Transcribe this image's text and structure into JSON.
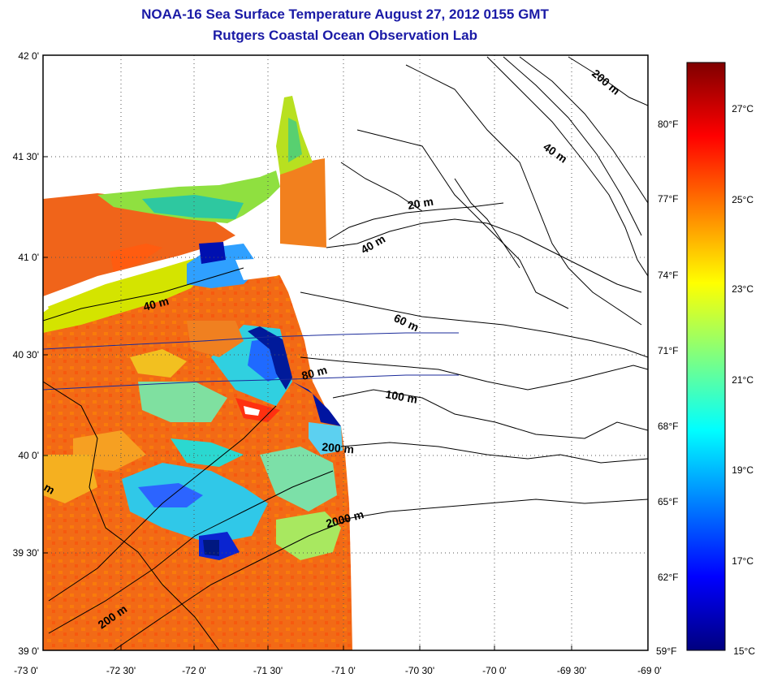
{
  "title": "NOAA-16 Sea Surface Temperature August 27, 2012 0155 GMT",
  "subtitle": "Rutgers Coastal Ocean Observation Lab",
  "map": {
    "lat_labels": [
      "42 0'",
      "41 30'",
      "41 0'",
      "40 30'",
      "40 0'",
      "39 30'",
      "39 0'"
    ],
    "lon_labels": [
      "-73 0'",
      "-72 30'",
      "-72 0'",
      "-71 30'",
      "-71 0'",
      "-70 30'",
      "-70 0'",
      "-69 30'",
      "-69 0'"
    ],
    "lat_range": [
      39,
      42
    ],
    "lon_range": [
      -73,
      -69
    ],
    "grid": "dotted",
    "contour_labels": [
      "200 m",
      "40 m",
      "20 m",
      "40 m",
      "40 m",
      "60 m",
      "80 m",
      "100 m",
      "200 m",
      "2000 m",
      "200 m",
      "m"
    ]
  },
  "colorbar": {
    "celsius_labels": [
      "27°C",
      "25°C",
      "23°C",
      "21°C",
      "19°C",
      "17°C",
      "15°C"
    ],
    "fahrenheit_labels": [
      "80°F",
      "77°F",
      "74°F",
      "71°F",
      "68°F",
      "65°F",
      "62°F",
      "59°F"
    ],
    "range_c": [
      15,
      28.3
    ],
    "colormap": [
      "#00007f",
      "#0000ff",
      "#00ffff",
      "#ffff00",
      "#ff0000",
      "#7f0000"
    ]
  }
}
